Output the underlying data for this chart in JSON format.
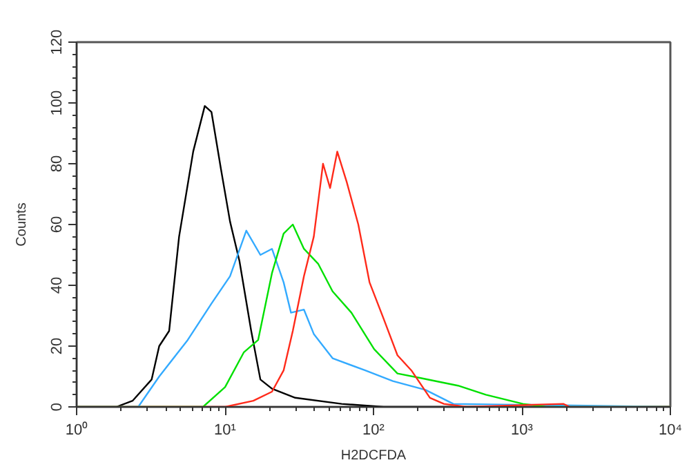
{
  "chart_data": {
    "type": "line",
    "xlabel": "H2DCFDA",
    "ylabel": "Counts",
    "log": "x",
    "grid": false,
    "xlim": [
      1,
      10000
    ],
    "ylim": [
      0,
      120
    ],
    "xticks": [
      {
        "value": 1,
        "label": "10⁰"
      },
      {
        "value": 10,
        "label": "10¹"
      },
      {
        "value": 100,
        "label": "10²"
      },
      {
        "value": 1000,
        "label": "10³"
      },
      {
        "value": 10000,
        "label": "10⁴"
      }
    ],
    "yticks": [
      0,
      20,
      40,
      60,
      80,
      100,
      120
    ],
    "series": [
      {
        "color": "#000000",
        "x": [
          1,
          1.85,
          2.38,
          3.2,
          3.6,
          4.2,
          4.9,
          6.1,
          7.3,
          8.1,
          9.4,
          10.8,
          12.5,
          15,
          17.3,
          20.7,
          29.7,
          61,
          117,
          10000
        ],
        "values": [
          0,
          0,
          2,
          9,
          20,
          25,
          56,
          84,
          99,
          97,
          78,
          61,
          48,
          25,
          9,
          6,
          3,
          1,
          0,
          0
        ]
      },
      {
        "color": "#33aaff",
        "x": [
          1,
          2.6,
          3.6,
          5.6,
          8.1,
          10.8,
          13.9,
          17.3,
          20.7,
          24.8,
          27.8,
          34,
          39.6,
          53,
          88,
          135,
          224,
          345,
          10000
        ],
        "values": [
          0,
          0,
          10,
          22,
          34,
          43,
          58,
          50,
          52,
          41,
          31,
          32,
          24,
          16,
          12,
          8.5,
          5.6,
          1,
          0
        ]
      },
      {
        "color": "#00e000",
        "x": [
          1,
          7.1,
          10,
          13.4,
          16.7,
          20.7,
          24.8,
          28.6,
          34,
          42.5,
          53,
          71,
          101,
          145,
          208,
          371,
          571,
          1016,
          1456,
          10000
        ],
        "values": [
          0,
          0,
          6.5,
          18,
          22,
          44,
          57,
          60,
          52,
          47,
          38,
          31,
          19,
          11,
          9.5,
          7,
          4,
          1,
          0,
          0
        ]
      },
      {
        "color": "#ff2a1a",
        "x": [
          1,
          10,
          15.5,
          20.7,
          24.8,
          28.6,
          34,
          39.6,
          45.7,
          51,
          57,
          66,
          79,
          94,
          117,
          145,
          180,
          240,
          298,
          427,
          1900,
          2100,
          10000
        ],
        "values": [
          0,
          0,
          2,
          5,
          12,
          25,
          43,
          56,
          80,
          72,
          84,
          74,
          60,
          41,
          29,
          17,
          12,
          3,
          1,
          0,
          1,
          0,
          0
        ]
      }
    ]
  }
}
